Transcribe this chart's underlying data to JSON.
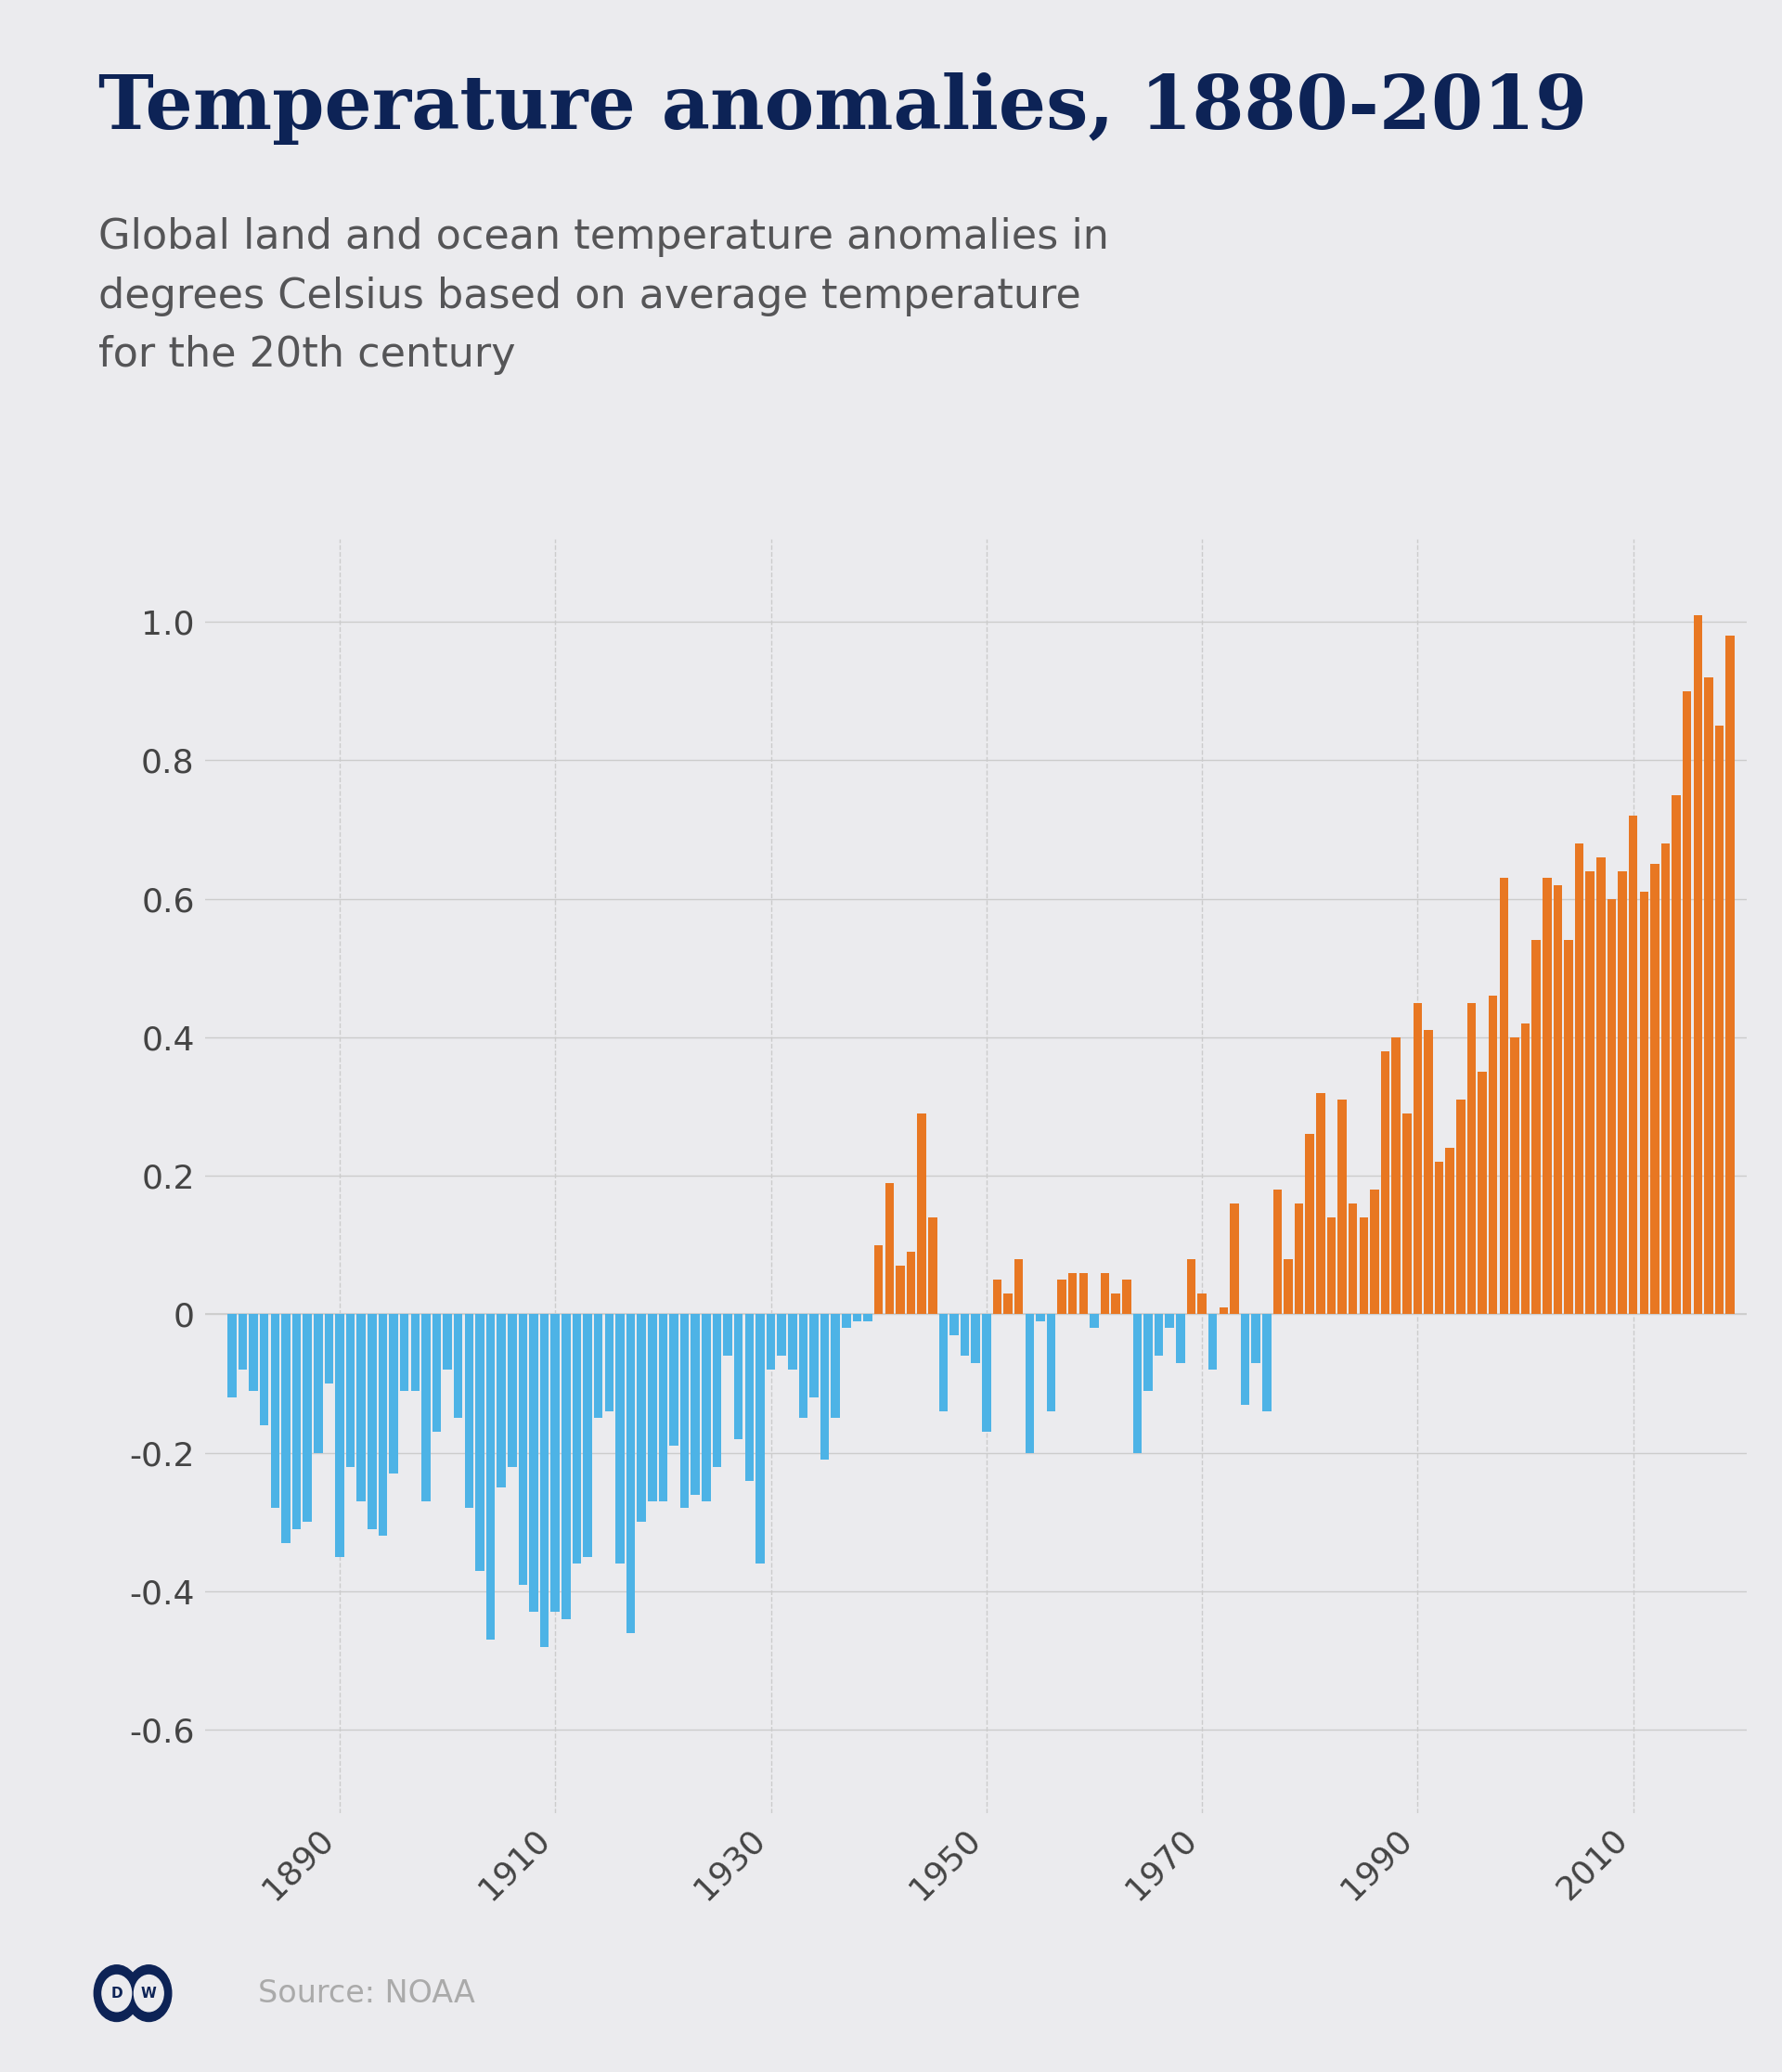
{
  "title": "Temperature anomalies, 1880-2019",
  "subtitle": "Global land and ocean temperature anomalies in\ndegrees Celsius based on average temperature\nfor the 20th century",
  "source": "Source: NOAA",
  "background_color": "#ebebee",
  "title_color": "#0d2356",
  "subtitle_color": "#555557",
  "source_color": "#aaaaaa",
  "bar_color_negative": "#4db3e6",
  "bar_color_positive": "#e87722",
  "years": [
    1880,
    1881,
    1882,
    1883,
    1884,
    1885,
    1886,
    1887,
    1888,
    1889,
    1890,
    1891,
    1892,
    1893,
    1894,
    1895,
    1896,
    1897,
    1898,
    1899,
    1900,
    1901,
    1902,
    1903,
    1904,
    1905,
    1906,
    1907,
    1908,
    1909,
    1910,
    1911,
    1912,
    1913,
    1914,
    1915,
    1916,
    1917,
    1918,
    1919,
    1920,
    1921,
    1922,
    1923,
    1924,
    1925,
    1926,
    1927,
    1928,
    1929,
    1930,
    1931,
    1932,
    1933,
    1934,
    1935,
    1936,
    1937,
    1938,
    1939,
    1940,
    1941,
    1942,
    1943,
    1944,
    1945,
    1946,
    1947,
    1948,
    1949,
    1950,
    1951,
    1952,
    1953,
    1954,
    1955,
    1956,
    1957,
    1958,
    1959,
    1960,
    1961,
    1962,
    1963,
    1964,
    1965,
    1966,
    1967,
    1968,
    1969,
    1970,
    1971,
    1972,
    1973,
    1974,
    1975,
    1976,
    1977,
    1978,
    1979,
    1980,
    1981,
    1982,
    1983,
    1984,
    1985,
    1986,
    1987,
    1988,
    1989,
    1990,
    1991,
    1992,
    1993,
    1994,
    1995,
    1996,
    1997,
    1998,
    1999,
    2000,
    2001,
    2002,
    2003,
    2004,
    2005,
    2006,
    2007,
    2008,
    2009,
    2010,
    2011,
    2012,
    2013,
    2014,
    2015,
    2016,
    2017,
    2018,
    2019
  ],
  "anomalies": [
    -0.12,
    -0.08,
    -0.11,
    -0.16,
    -0.28,
    -0.33,
    -0.31,
    -0.3,
    -0.2,
    -0.1,
    -0.35,
    -0.22,
    -0.27,
    -0.31,
    -0.32,
    -0.23,
    -0.11,
    -0.11,
    -0.27,
    -0.17,
    -0.08,
    -0.15,
    -0.28,
    -0.37,
    -0.47,
    -0.25,
    -0.22,
    -0.39,
    -0.43,
    -0.48,
    -0.43,
    -0.44,
    -0.36,
    -0.35,
    -0.15,
    -0.14,
    -0.36,
    -0.46,
    -0.3,
    -0.27,
    -0.27,
    -0.19,
    -0.28,
    -0.26,
    -0.27,
    -0.22,
    -0.06,
    -0.18,
    -0.24,
    -0.36,
    -0.08,
    -0.06,
    -0.08,
    -0.15,
    -0.12,
    -0.21,
    -0.15,
    -0.02,
    -0.01,
    -0.01,
    0.1,
    0.19,
    0.07,
    0.09,
    0.29,
    0.14,
    -0.14,
    -0.03,
    -0.06,
    -0.07,
    -0.17,
    0.05,
    0.03,
    0.08,
    -0.2,
    -0.01,
    -0.14,
    0.05,
    0.06,
    0.06,
    -0.02,
    0.06,
    0.03,
    0.05,
    -0.2,
    -0.11,
    -0.06,
    -0.02,
    -0.07,
    0.08,
    0.03,
    -0.08,
    0.01,
    0.16,
    -0.13,
    -0.07,
    -0.14,
    0.18,
    0.08,
    0.16,
    0.26,
    0.32,
    0.14,
    0.31,
    0.16,
    0.14,
    0.18,
    0.38,
    0.4,
    0.29,
    0.45,
    0.41,
    0.22,
    0.24,
    0.31,
    0.45,
    0.35,
    0.46,
    0.63,
    0.4,
    0.42,
    0.54,
    0.63,
    0.62,
    0.54,
    0.68,
    0.64,
    0.66,
    0.6,
    0.64,
    0.72,
    0.61,
    0.65,
    0.68,
    0.75,
    0.9,
    1.01,
    0.92,
    0.85,
    0.98
  ],
  "ylim": [
    -0.72,
    1.12
  ],
  "yticks": [
    -0.6,
    -0.4,
    -0.2,
    0.0,
    0.2,
    0.4,
    0.6,
    0.8,
    1.0
  ],
  "xtick_years": [
    1890,
    1910,
    1930,
    1950,
    1970,
    1990,
    2010
  ],
  "grid_color": "#cccccc",
  "tick_color": "#444444",
  "title_fontsize": 58,
  "subtitle_fontsize": 32,
  "tick_fontsize": 26,
  "source_fontsize": 24
}
